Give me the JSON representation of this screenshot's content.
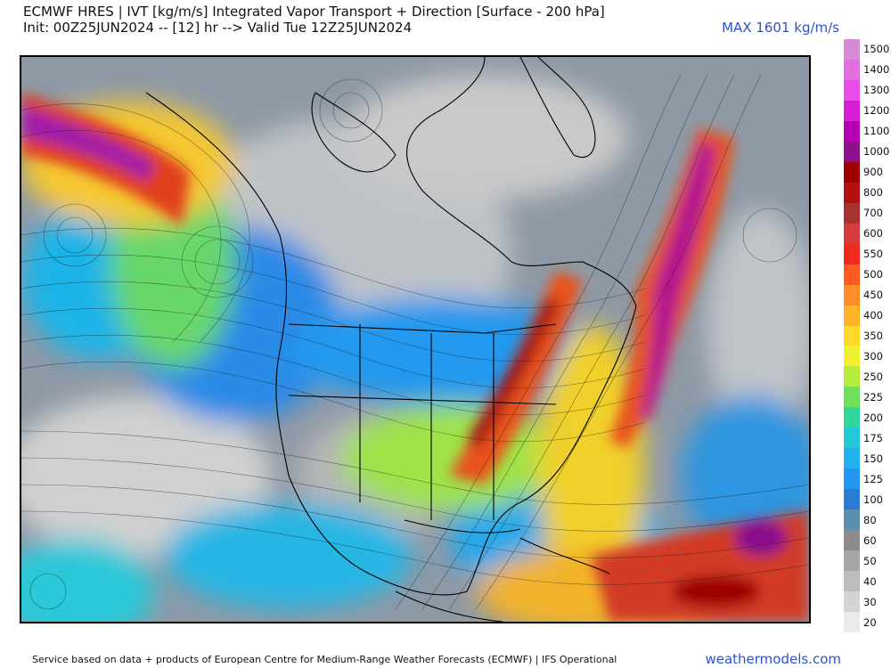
{
  "header": {
    "title_line1": "ECMWF HRES | IVT [kg/m/s] Integrated Vapor Transport + Direction [Surface - 200 hPa]",
    "title_line2": "Init: 00Z25JUN2024 -- [12] hr --> Valid Tue 12Z25JUN2024",
    "max_label": "MAX 1601 kg/m/s"
  },
  "colorbar": {
    "levels": [
      {
        "label": "1500",
        "color": "#d68ad6"
      },
      {
        "label": "1400",
        "color": "#e070e0"
      },
      {
        "label": "1300",
        "color": "#e84de8"
      },
      {
        "label": "1200",
        "color": "#d61ed6"
      },
      {
        "label": "1100",
        "color": "#b300b3"
      },
      {
        "label": "1000",
        "color": "#8c0f8c"
      },
      {
        "label": "900",
        "color": "#9e0000"
      },
      {
        "label": "800",
        "color": "#b51010"
      },
      {
        "label": "700",
        "color": "#a83232"
      },
      {
        "label": "600",
        "color": "#d63a3a"
      },
      {
        "label": "550",
        "color": "#f02a1e"
      },
      {
        "label": "500",
        "color": "#ff5a22"
      },
      {
        "label": "450",
        "color": "#ff8c28"
      },
      {
        "label": "400",
        "color": "#ffb22a"
      },
      {
        "label": "350",
        "color": "#ffd82a"
      },
      {
        "label": "300",
        "color": "#f0f030"
      },
      {
        "label": "250",
        "color": "#b8ec3a"
      },
      {
        "label": "225",
        "color": "#6fe05a"
      },
      {
        "label": "200",
        "color": "#2fd79b"
      },
      {
        "label": "175",
        "color": "#22c8d8"
      },
      {
        "label": "150",
        "color": "#23b2f0"
      },
      {
        "label": "125",
        "color": "#2196f3"
      },
      {
        "label": "100",
        "color": "#2a7ad6"
      },
      {
        "label": "80",
        "color": "#5b8fb0"
      },
      {
        "label": "60",
        "color": "#8c8c8c"
      },
      {
        "label": "50",
        "color": "#a6a6a6"
      },
      {
        "label": "40",
        "color": "#bdbdbd"
      },
      {
        "label": "30",
        "color": "#d4d4d4"
      },
      {
        "label": "20",
        "color": "#ebebeb"
      }
    ]
  },
  "footer": {
    "credit": "Service based on data + products of European Centre for Medium-Range Weather Forecasts (ECMWF) | IFS Operational",
    "brand": "weathermodels.com"
  }
}
